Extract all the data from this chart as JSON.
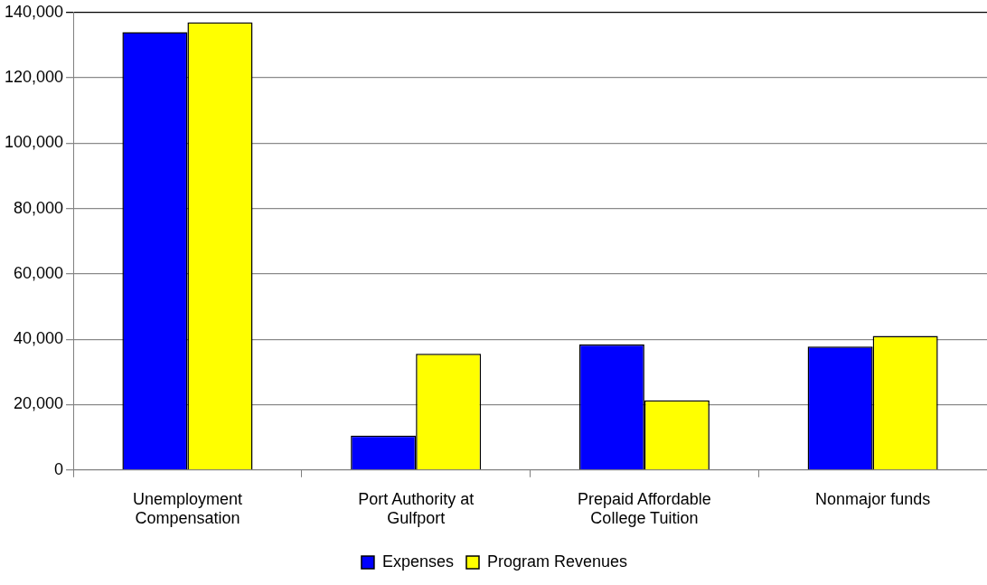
{
  "chart_data": {
    "type": "bar",
    "categories": [
      "Unemployment Compensation",
      "Port Authority at Gulfport",
      "Prepaid Affordable College Tuition",
      "Nonmajor funds"
    ],
    "series": [
      {
        "name": "Expenses",
        "color": "#0000ff",
        "values": [
          134000,
          10500,
          38400,
          37800
        ]
      },
      {
        "name": "Program Revenues",
        "color": "#ffff00",
        "values": [
          137000,
          35600,
          21300,
          41000
        ]
      }
    ],
    "ylim": [
      0,
      140000
    ],
    "yticks": [
      {
        "value": 0,
        "label": "0"
      },
      {
        "value": 20000,
        "label": "20,000"
      },
      {
        "value": 40000,
        "label": "40,000"
      },
      {
        "value": 60000,
        "label": "60,000"
      },
      {
        "value": 80000,
        "label": "80,000"
      },
      {
        "value": 100000,
        "label": "100,000"
      },
      {
        "value": 120000,
        "label": "120,000"
      },
      {
        "value": 140000,
        "label": "140,000"
      }
    ],
    "grid": "y",
    "legend": "bottom"
  }
}
